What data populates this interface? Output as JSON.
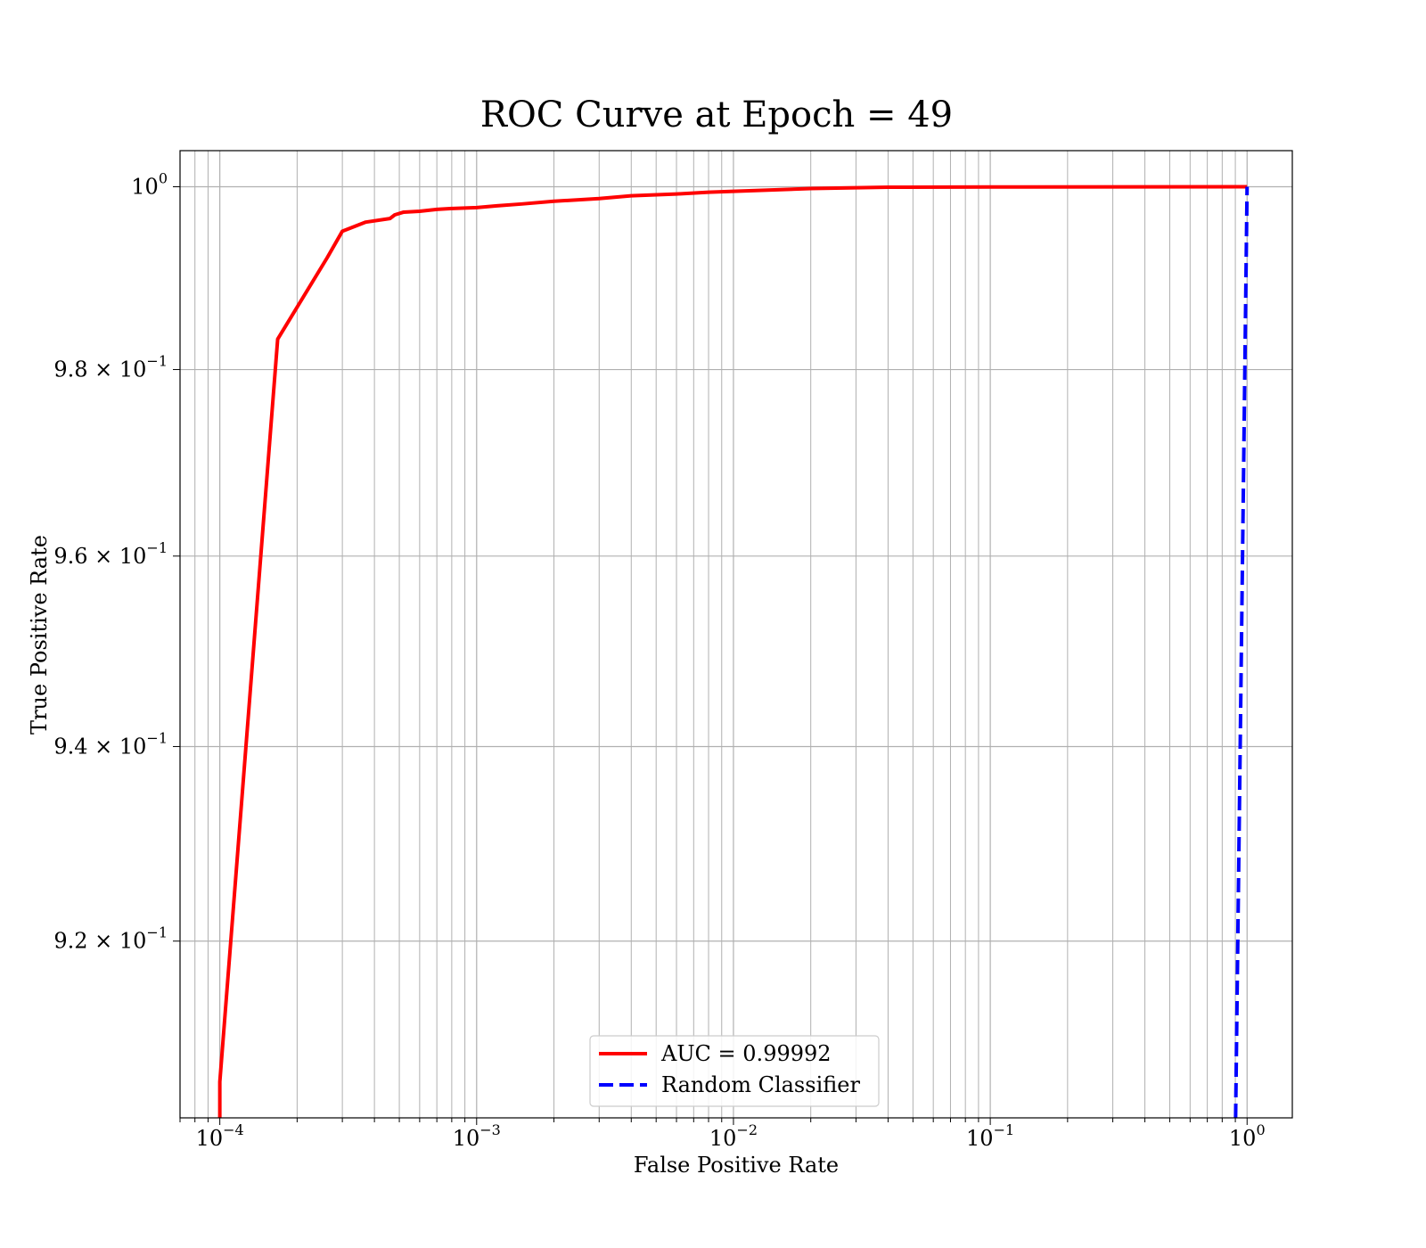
{
  "chart_data": {
    "type": "line",
    "title": "ROC Curve at Epoch = 49",
    "xlabel": "False Positive Rate",
    "ylabel": "True Positive Rate",
    "xscale": "log",
    "yscale": "log",
    "xlim": [
      7e-05,
      1.5
    ],
    "ylim": [
      0.9022,
      1.004
    ],
    "grid": true,
    "grid_minor": true,
    "legend_position": "lower center",
    "x_ticks": [
      {
        "value": 0.0001,
        "base": "10",
        "exp": "−4"
      },
      {
        "value": 0.001,
        "base": "10",
        "exp": "−3"
      },
      {
        "value": 0.01,
        "base": "10",
        "exp": "−2"
      },
      {
        "value": 0.1,
        "base": "10",
        "exp": "−1"
      },
      {
        "value": 1,
        "base": "10",
        "exp": "0"
      }
    ],
    "y_ticks": [
      {
        "value": 1.0,
        "mant": "",
        "base": "10",
        "exp": "0"
      },
      {
        "value": 0.98,
        "mant": "9.8 × ",
        "base": "10",
        "exp": "−1"
      },
      {
        "value": 0.96,
        "mant": "9.6 × ",
        "base": "10",
        "exp": "−1"
      },
      {
        "value": 0.94,
        "mant": "9.4 × ",
        "base": "10",
        "exp": "−1"
      },
      {
        "value": 0.92,
        "mant": "9.2 × ",
        "base": "10",
        "exp": "−1"
      }
    ],
    "series": [
      {
        "name": "AUC = 0.99992",
        "color": "#ff0000",
        "style": "solid",
        "x": [
          0.0001,
          0.0001,
          0.000168,
          0.000262,
          0.0003,
          0.00037,
          0.00046,
          0.00048,
          0.00052,
          0.0006,
          0.0007,
          0.0008,
          0.001,
          0.0012,
          0.0015,
          0.002,
          0.003,
          0.004,
          0.006,
          0.008,
          0.01,
          0.02,
          0.04,
          0.1,
          1.0
        ],
        "y": [
          0.9022,
          0.9058,
          0.9833,
          0.9922,
          0.9951,
          0.9961,
          0.9965,
          0.9969,
          0.9972,
          0.9973,
          0.9975,
          0.9976,
          0.9977,
          0.9979,
          0.9981,
          0.9984,
          0.9987,
          0.999,
          0.9992,
          0.9994,
          0.9995,
          0.9998,
          0.99995,
          0.99998,
          1.0
        ]
      },
      {
        "name": "Random Classifier",
        "color": "#0000ff",
        "style": "dashed",
        "x": [
          0.9022,
          1.0
        ],
        "y": [
          0.9022,
          1.0
        ]
      }
    ]
  }
}
